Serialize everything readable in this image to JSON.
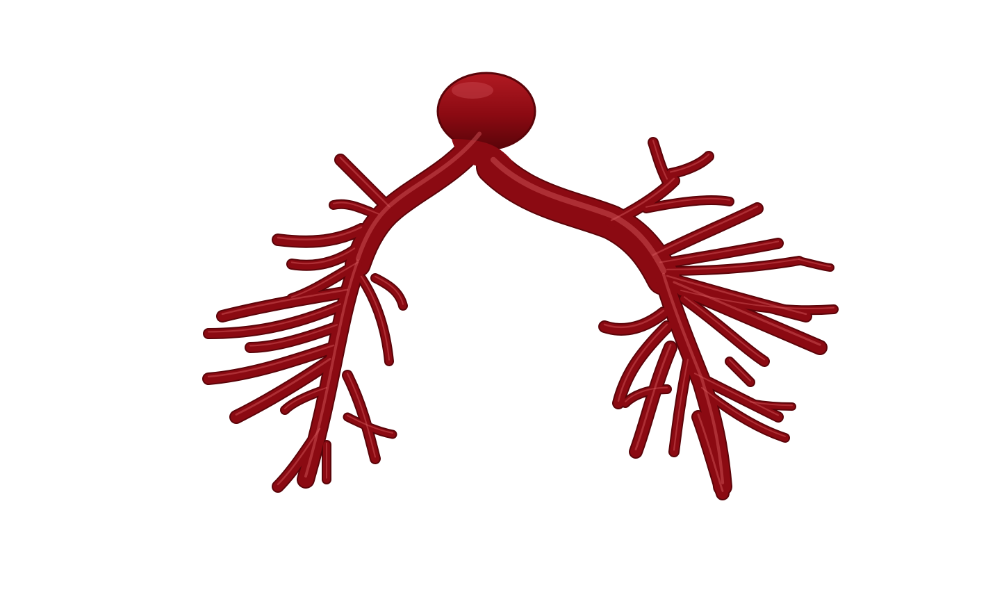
{
  "scene": {
    "background_color": "#ffffff",
    "model": {
      "subject": "pulmonary-vessel-tree-3d-render",
      "surface_color": "#8b0a12",
      "shadow_color": "#5a0409",
      "highlight_color": "#d65a60"
    }
  }
}
